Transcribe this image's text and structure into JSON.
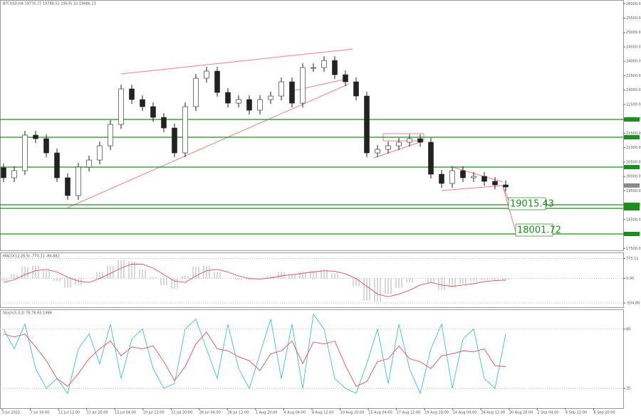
{
  "header": "BTCUSD,H4  19770.77 19788.52 19635.10 19686.13",
  "x_labels": [
    "5 Jul 2022",
    "7 Jul 16:00",
    "11 Jul 12:00",
    "13 Jul 20:00",
    "15 Jul 04:00",
    "19 Jul 12:00",
    "21 Jul 20:00",
    "26 Jul 04:00",
    "28 Jul 12:00",
    "1 Aug 20:00",
    "4 Aug 04:00",
    "8 Aug 12:00",
    "10 Aug 20:00",
    "15 Aug 04:00",
    "17 Aug 12:00",
    "19 Aug 20:00",
    "24 Aug 04:00",
    "26 Aug 12:00",
    "30 Aug 20:00",
    "2 Sep 04:00",
    "6 Sep 12:00",
    "8 Sep 20:00"
  ],
  "chart_data": [
    {
      "type": "candlestick",
      "open": [
        20300,
        19954,
        20201,
        21436,
        21312,
        20818,
        19954,
        19336,
        20324,
        20571,
        21065,
        21806,
        23041,
        22671,
        22424,
        22053,
        21683,
        20818,
        22424,
        23412,
        23659,
        22918,
        22547,
        22671,
        22300,
        22671,
        22794,
        23288,
        22547,
        23782,
        23782,
        24029,
        23535,
        23288,
        22794,
        20818,
        20942,
        21065,
        21189,
        21312,
        21189,
        20077,
        19756,
        20201,
        19954,
        20003,
        19830,
        19707
      ],
      "high": [
        20450,
        20351,
        21586,
        21586,
        21462,
        20968,
        20104,
        20474,
        20721,
        21215,
        21956,
        23191,
        23191,
        22821,
        22574,
        22203,
        21833,
        22574,
        23562,
        23809,
        23809,
        23068,
        22821,
        22821,
        22821,
        22944,
        23438,
        23438,
        23932,
        23932,
        24179,
        24179,
        23685,
        23438,
        22944,
        21092,
        21215,
        21339,
        21462,
        21462,
        21339,
        20227,
        20351,
        20351,
        20153,
        20153,
        19980,
        19857
      ],
      "low": [
        19804,
        19804,
        20051,
        21162,
        20668,
        19804,
        19186,
        19186,
        20174,
        20421,
        20915,
        21656,
        22521,
        22274,
        21903,
        21533,
        20668,
        20668,
        22274,
        23262,
        22768,
        22397,
        22397,
        22150,
        22150,
        22521,
        22644,
        22397,
        22397,
        23632,
        23632,
        23385,
        23138,
        22644,
        20668,
        20668,
        20792,
        20915,
        21039,
        21039,
        19927,
        19606,
        19606,
        19804,
        19804,
        19680,
        19557,
        19483
      ],
      "close": [
        19954,
        20201,
        21436,
        21312,
        20818,
        19954,
        19336,
        20324,
        20571,
        21065,
        21806,
        23041,
        22671,
        22424,
        22053,
        21683,
        20818,
        22424,
        23412,
        23659,
        22918,
        22547,
        22671,
        22300,
        22671,
        22794,
        23288,
        22547,
        23782,
        23782,
        24029,
        23535,
        23288,
        22794,
        20818,
        20942,
        21065,
        21189,
        21312,
        21189,
        20077,
        19756,
        20201,
        19954,
        20003,
        19830,
        19707,
        19633
      ],
      "up_color": "#ffffff",
      "down_color": "#222222",
      "ylim": [
        17434,
        26130
      ],
      "yticks": [
        {
          "value": 26000,
          "label": "26000.00"
        },
        {
          "value": 25500,
          "label": "25500.00"
        },
        {
          "value": 25000,
          "label": "25000.00"
        },
        {
          "value": 24500,
          "label": "24500.00"
        },
        {
          "value": 24000,
          "label": "24000.00"
        },
        {
          "value": 23500,
          "label": "23500.00"
        },
        {
          "value": 23000,
          "label": "23000.00"
        },
        {
          "value": 22500,
          "label": "22500.00"
        },
        {
          "value": 22000,
          "label": "22000.00"
        },
        {
          "value": 21500,
          "label": "21500.00"
        },
        {
          "value": 21000,
          "label": "21000.00"
        },
        {
          "value": 20500,
          "label": "20500.00"
        },
        {
          "value": 20000,
          "label": "20000.00"
        },
        {
          "value": 19500,
          "label": "19500.00"
        },
        {
          "value": 19000,
          "label": "19000.00"
        },
        {
          "value": 18500,
          "label": "18500.00"
        },
        {
          "value": 18000,
          "label": "18000.00"
        },
        {
          "value": 17500,
          "label": "17500.00"
        }
      ],
      "levels": [
        21980,
        21362,
        20324,
        19015.43,
        18892,
        18001.72
      ],
      "level_color": "#1e8c1e",
      "last_price": 19686.13
    },
    {
      "type": "combo",
      "title": "MACD(12,26,9) -770.11 -84.882",
      "series": [
        {
          "type": "bar",
          "color": "#b0b0b0",
          "values": [
            -100,
            150,
            450,
            500,
            300,
            -100,
            -350,
            -250,
            0,
            250,
            500,
            700,
            650,
            350,
            50,
            -250,
            -400,
            100,
            450,
            500,
            250,
            0,
            -50,
            -50,
            0,
            100,
            250,
            150,
            250,
            300,
            350,
            200,
            0,
            -300,
            -850,
            -900,
            -600,
            -350,
            -150,
            0,
            -150,
            -450,
            -350,
            -200,
            -100,
            -50,
            -50,
            -50
          ]
        },
        {
          "type": "line",
          "color": "#e05050",
          "values": [
            -150,
            -50,
            150,
            300,
            350,
            250,
            50,
            -100,
            -150,
            0,
            200,
            400,
            550,
            550,
            400,
            150,
            -100,
            -150,
            100,
            300,
            350,
            250,
            100,
            0,
            -20,
            20,
            100,
            150,
            200,
            250,
            300,
            280,
            180,
            0,
            -300,
            -600,
            -700,
            -600,
            -450,
            -250,
            -150,
            -250,
            -300,
            -250,
            -200,
            -120,
            -80,
            -60
          ]
        }
      ],
      "ylim": [
        -1100,
        1000
      ],
      "yticks": [
        773.11,
        {
          "value": 0,
          "label": "0.00"
        },
        -934.86
      ]
    },
    {
      "type": "combo",
      "title": "Stoch(5,3,3) 78.76 65.1998",
      "series": [
        {
          "type": "line",
          "color": "#40c0d0",
          "values": [
            80,
            60,
            85,
            40,
            20,
            30,
            15,
            60,
            75,
            45,
            85,
            30,
            70,
            80,
            40,
            20,
            25,
            80,
            90,
            60,
            30,
            85,
            40,
            20,
            55,
            90,
            30,
            85,
            20,
            95,
            80,
            30,
            20,
            15,
            45,
            80,
            25,
            85,
            40,
            15,
            60,
            85,
            20,
            70,
            80,
            30,
            20,
            75
          ]
        },
        {
          "type": "line",
          "color": "#e05050",
          "values": [
            75,
            72,
            75,
            62,
            48,
            30,
            22,
            35,
            50,
            60,
            68,
            53,
            62,
            60,
            63,
            47,
            28,
            42,
            65,
            77,
            60,
            58,
            52,
            48,
            38,
            55,
            58,
            68,
            45,
            67,
            65,
            68,
            43,
            22,
            27,
            47,
            50,
            63,
            50,
            47,
            40,
            53,
            55,
            58,
            57,
            60,
            43,
            42
          ]
        }
      ],
      "ylim": [
        0,
        100
      ],
      "yticks": [
        80,
        20
      ]
    }
  ]
}
